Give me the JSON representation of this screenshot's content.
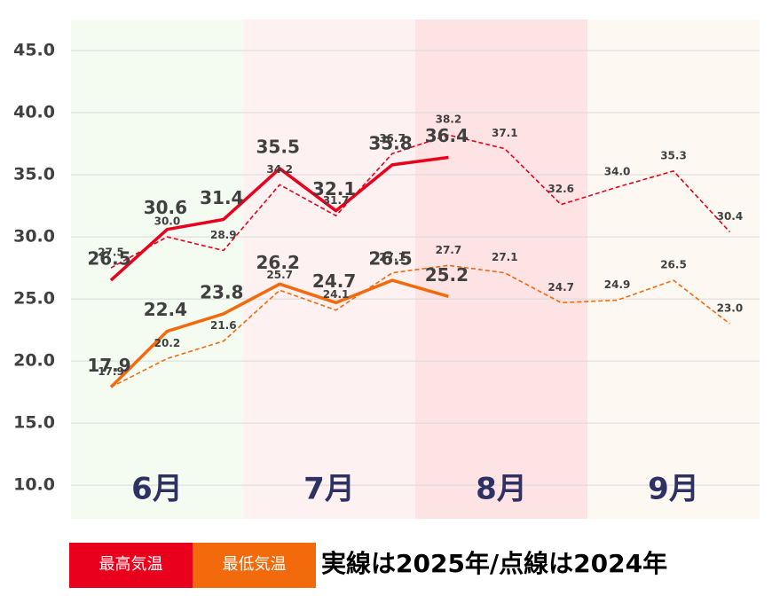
{
  "chart_data": {
    "type": "line",
    "categories": [
      null,
      null,
      null,
      null,
      null,
      null,
      null,
      null,
      null,
      null,
      null,
      null
    ],
    "bands": [
      {
        "label": "6月",
        "color": "#f4fbf1"
      },
      {
        "label": "7月",
        "color": "#fdf1f1"
      },
      {
        "label": "8月",
        "color": "#fde3e3"
      },
      {
        "label": "9月",
        "color": "#fdf8f1"
      }
    ],
    "series": [
      {
        "name": "最高気温",
        "color": "#e8001c",
        "values": [
          26.5,
          30.6,
          31.4,
          35.5,
          32.1,
          35.8,
          36.4,
          null,
          null,
          null,
          null,
          null
        ],
        "value_labels": [
          "26.5",
          "30.6",
          "31.4",
          "35.5",
          "32.1",
          "35.8",
          "36.4",
          null,
          null,
          null,
          null,
          null
        ],
        "dashed_values": [
          27.5,
          30.0,
          28.9,
          34.2,
          31.7,
          36.7,
          38.2,
          37.1,
          32.6,
          34.0,
          35.3,
          30.4
        ],
        "dashed_value_labels": [
          "27.5",
          "30.0",
          "28.9",
          "34.2",
          "31.7",
          "36.7",
          "38.2",
          "37.1",
          "32.6",
          "34.0",
          "35.3",
          "30.4"
        ]
      },
      {
        "name": "最低気温",
        "color": "#f26a0c",
        "values": [
          17.9,
          22.4,
          23.8,
          26.2,
          24.7,
          26.5,
          25.2,
          null,
          null,
          null,
          null,
          null
        ],
        "value_labels": [
          "17.9",
          "22.4",
          "23.8",
          "26.2",
          "24.7",
          "26.5",
          "25.2",
          null,
          null,
          null,
          null,
          null
        ],
        "dashed_values": [
          17.9,
          20.2,
          21.6,
          25.7,
          24.1,
          27.1,
          27.7,
          27.1,
          24.7,
          24.9,
          26.5,
          23.0
        ],
        "dashed_value_labels": [
          "17.9",
          "20.2",
          "21.6",
          "25.7",
          "24.1",
          "27.1",
          "27.7",
          "27.1",
          "24.7",
          "24.9",
          "26.5",
          "23.0"
        ]
      }
    ],
    "note": "実線は2025年/点線は2024年",
    "ylim": [
      7.3,
      47.5
    ],
    "yticks": [
      {
        "value": 10,
        "label": "10.0"
      },
      {
        "value": 15,
        "label": "15.0"
      },
      {
        "value": 20,
        "label": "20.0"
      },
      {
        "value": 25,
        "label": "25.0"
      },
      {
        "value": 30,
        "label": "30.0"
      },
      {
        "value": 35,
        "label": "35.0"
      },
      {
        "value": 40,
        "label": "40.0"
      },
      {
        "value": 45,
        "label": "45.0"
      }
    ],
    "grid": true
  }
}
